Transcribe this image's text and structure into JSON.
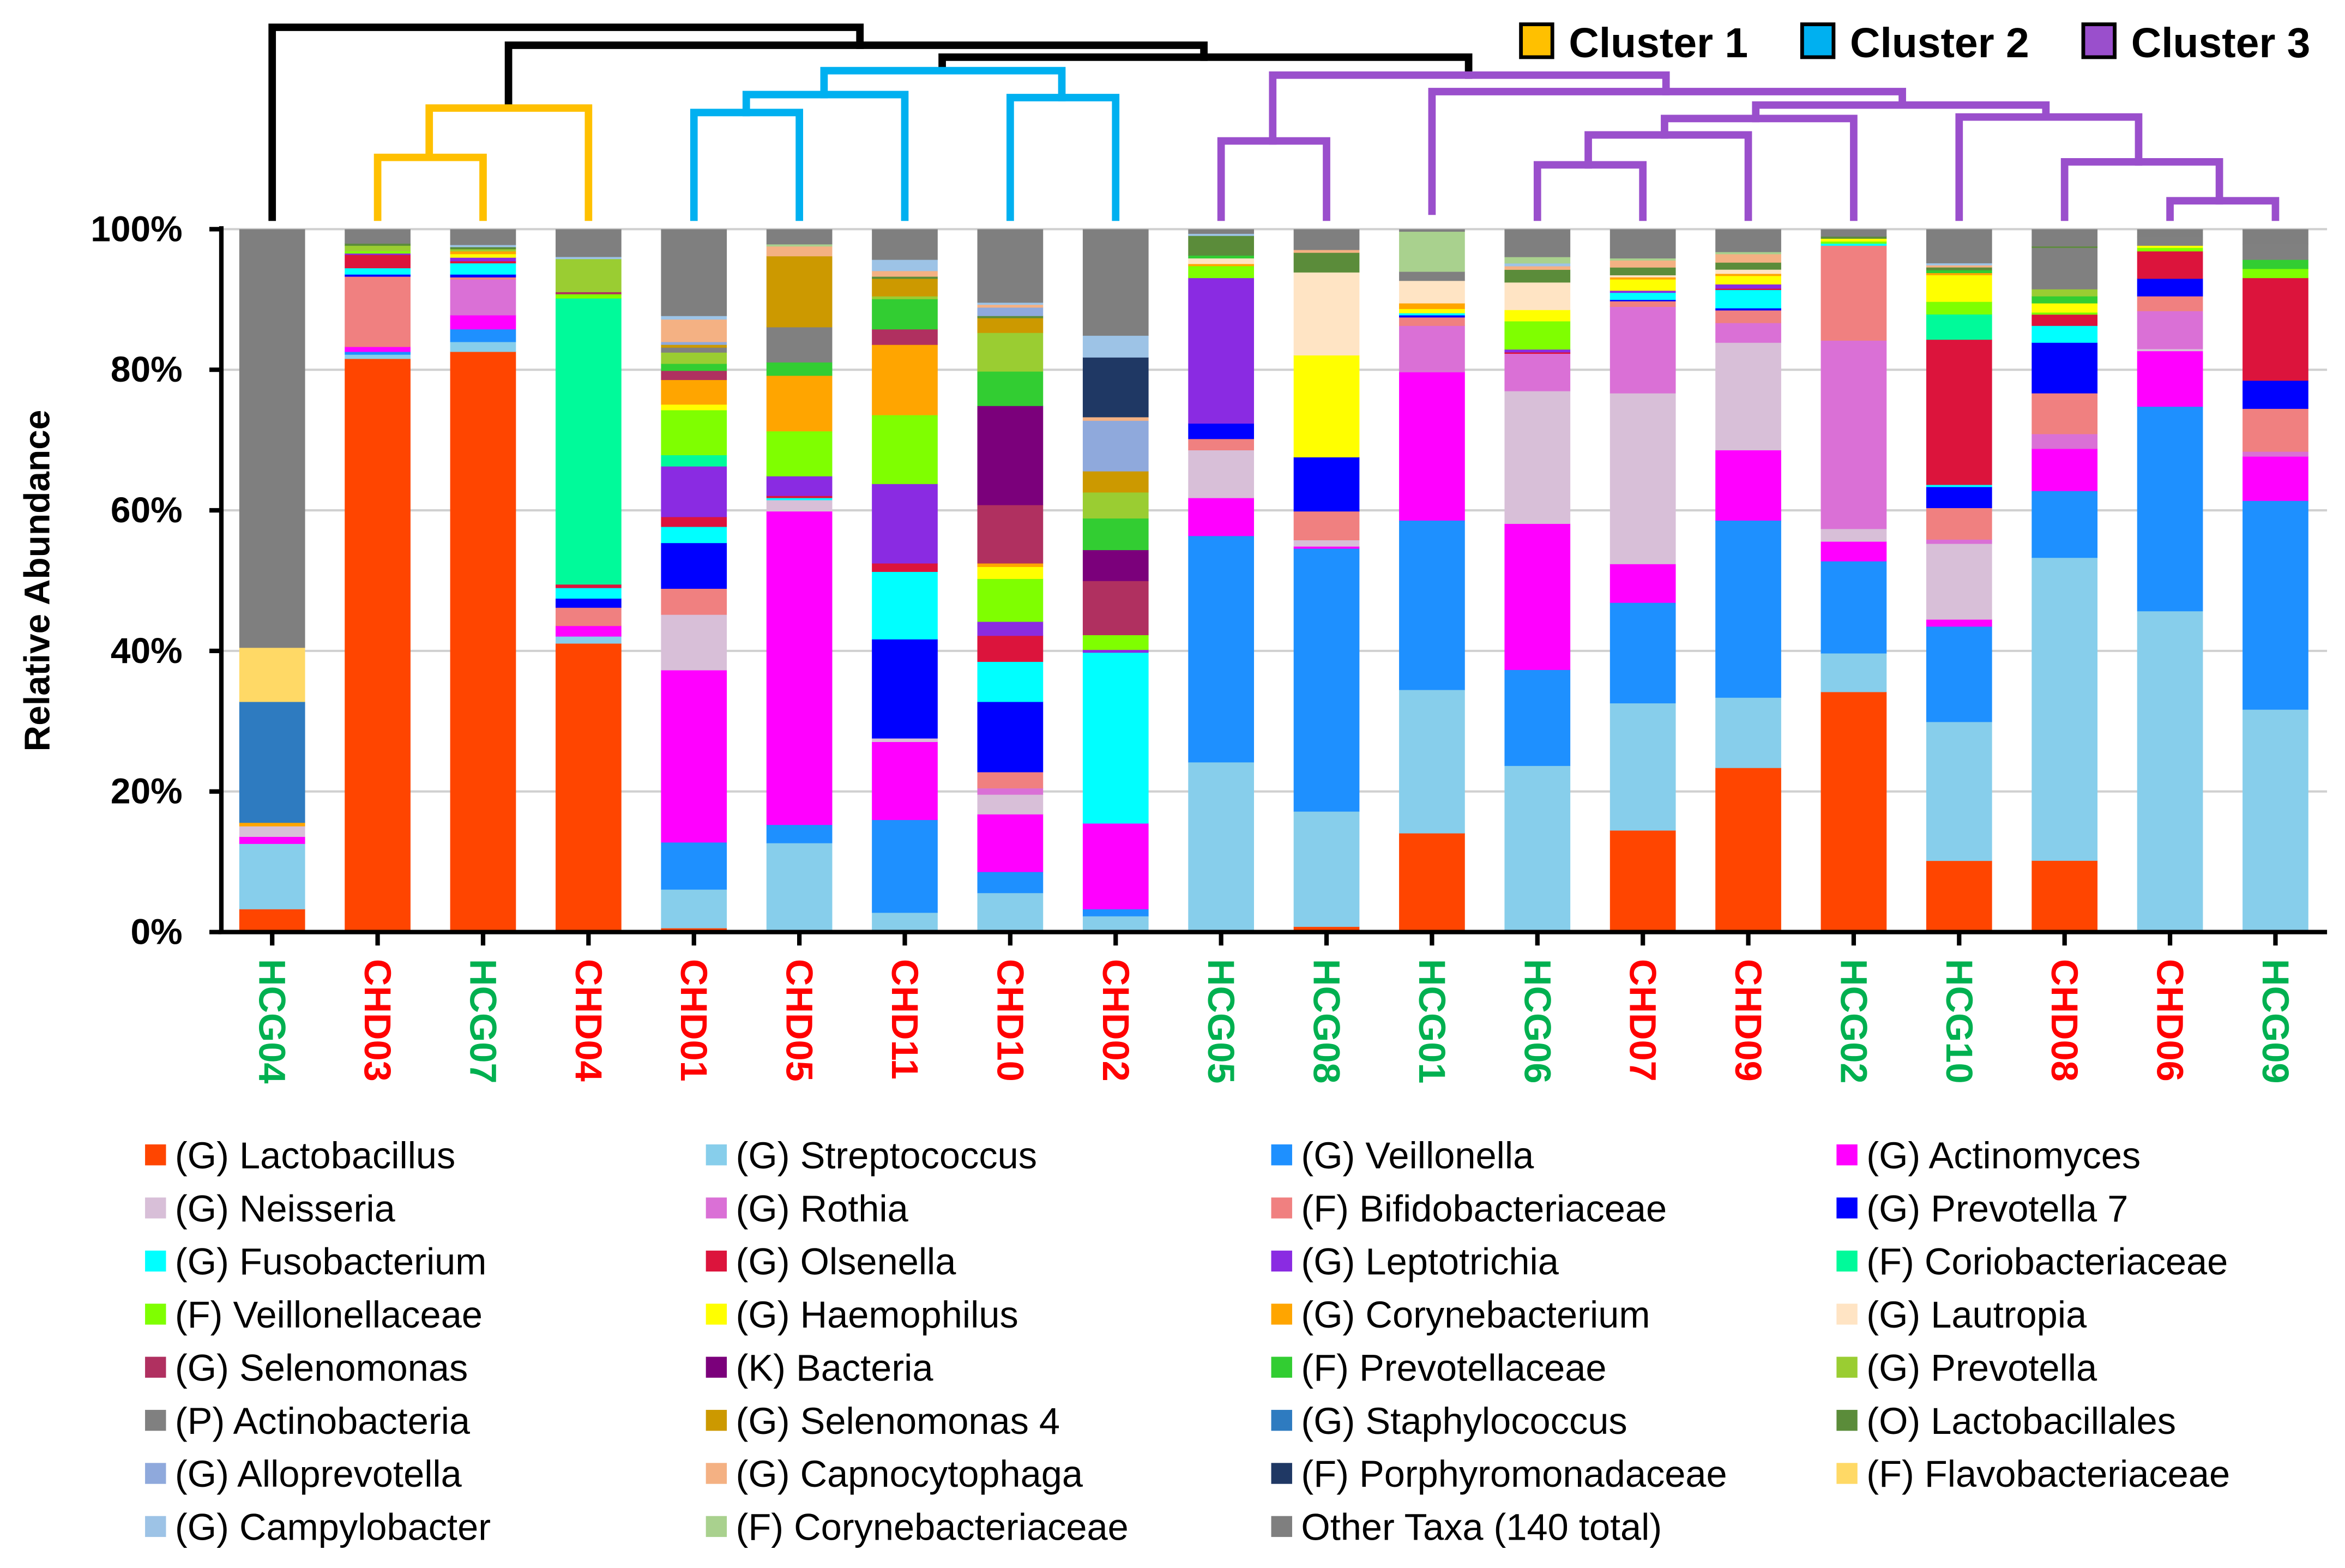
{
  "chart_data": {
    "type": "bar",
    "stacked": true,
    "ylabel": "Relative Abundance",
    "xlabel": "",
    "ylim": [
      0,
      100
    ],
    "yticks": [
      "0%",
      "20%",
      "40%",
      "60%",
      "80%",
      "100%"
    ],
    "grid": true,
    "legend_placement": "bottom",
    "categories": [
      "HCG04",
      "CHD03",
      "HCG07",
      "CHD04",
      "CHD01",
      "CHD05",
      "CHD11",
      "CHD10",
      "CHD02",
      "HCG05",
      "HCG08",
      "HCG01",
      "HCG06",
      "CHD07",
      "CHD09",
      "HCG02",
      "HCG10",
      "CHD08",
      "CHD06",
      "HCG09"
    ],
    "category_label_colors": [
      "#00B050",
      "#FF0000",
      "#00B050",
      "#FF0000",
      "#FF0000",
      "#FF0000",
      "#FF0000",
      "#FF0000",
      "#FF0000",
      "#00B050",
      "#00B050",
      "#00B050",
      "#00B050",
      "#FF0000",
      "#FF0000",
      "#00B050",
      "#00B050",
      "#FF0000",
      "#FF0000",
      "#00B050"
    ],
    "clusters": {
      "legend": [
        {
          "label": "Cluster 1",
          "color": "#FFC000"
        },
        {
          "label": "Cluster 2",
          "color": "#00B0F0"
        },
        {
          "label": "Cluster 3",
          "color": "#9A4FCC"
        }
      ],
      "membership": {
        "Cluster 1": [
          "CHD03",
          "HCG07",
          "CHD04"
        ],
        "Cluster 2": [
          "CHD01",
          "CHD05",
          "CHD11",
          "CHD10",
          "CHD02"
        ],
        "Cluster 3": [
          "HCG05",
          "HCG08",
          "HCG01",
          "HCG06",
          "CHD07",
          "CHD09",
          "HCG02",
          "HCG10",
          "CHD08",
          "CHD06",
          "HCG09"
        ]
      },
      "unclustered_color": "#000000"
    },
    "series": [
      {
        "name": "(G) Lactobacillus",
        "color": "#FF4500",
        "values": [
          3.3,
          81.6,
          82.6,
          41.1,
          0.6,
          0,
          0,
          0,
          0,
          0,
          0.8,
          14.1,
          0,
          14.5,
          23.4,
          34.2,
          10.2,
          10.2,
          0,
          0
        ]
      },
      {
        "name": "(G) Streptococcus",
        "color": "#87CEEB",
        "values": [
          9.3,
          0.6,
          1.4,
          1.0,
          5.5,
          12.7,
          2.8,
          5.6,
          2.3,
          24.2,
          16.4,
          20.4,
          23.6,
          18.1,
          10.0,
          5.5,
          19.8,
          43.1,
          45.7,
          31.7
        ]
      },
      {
        "name": "(G) Veillonella",
        "color": "#1E90FF",
        "values": [
          0,
          0.4,
          1.8,
          0,
          6.7,
          2.6,
          13.2,
          3.0,
          1.0,
          32.2,
          37.4,
          24.1,
          13.6,
          14.3,
          25.2,
          13.1,
          13.6,
          9.5,
          29.1,
          29.7
        ]
      },
      {
        "name": "(G) Actinomyces",
        "color": "#FF00FF",
        "values": [
          1.0,
          0.7,
          2.0,
          1.5,
          24.5,
          44.6,
          11.1,
          8.2,
          12.2,
          5.4,
          0.3,
          21.1,
          20.7,
          5.5,
          10.0,
          2.8,
          1.0,
          6.0,
          7.9,
          6.3
        ]
      },
      {
        "name": "(G) Neisseria",
        "color": "#D8BFD8",
        "values": [
          1.5,
          0,
          0,
          0,
          7.9,
          1.6,
          0.5,
          2.8,
          0,
          6.8,
          0.9,
          0,
          18.8,
          24.3,
          15.3,
          1.8,
          10.8,
          0,
          0.3,
          0
        ]
      },
      {
        "name": "(G) Rothia",
        "color": "#DA70D6",
        "values": [
          0,
          0,
          5.1,
          0,
          0,
          0,
          0,
          0.9,
          0,
          0,
          0,
          6.6,
          5.3,
          12.3,
          2.8,
          26.8,
          0.6,
          2.1,
          5.4,
          0.7
        ]
      },
      {
        "name": "(F) Bifidobacteriaceae",
        "color": "#F08080",
        "values": [
          0,
          10.0,
          0.3,
          2.6,
          3.7,
          0,
          0,
          2.3,
          0,
          1.6,
          4.1,
          1.2,
          0,
          0.8,
          1.8,
          13.5,
          4.5,
          5.8,
          2.1,
          6.1
        ]
      },
      {
        "name": "(G) Prevotella 7",
        "color": "#0000FF",
        "values": [
          0,
          0.3,
          0.4,
          1.3,
          6.5,
          0,
          14.1,
          10.0,
          0,
          2.2,
          7.7,
          0.3,
          0,
          0.2,
          0.3,
          0,
          3.0,
          7.2,
          2.5,
          4.0
        ]
      },
      {
        "name": "(G) Fusobacterium",
        "color": "#00FFFF",
        "values": [
          0,
          0.9,
          1.6,
          1.5,
          2.3,
          0.3,
          9.6,
          5.7,
          24.3,
          0,
          0,
          0.3,
          0,
          1.0,
          2.6,
          0.3,
          0.3,
          2.4,
          0,
          0
        ]
      },
      {
        "name": "(G) Olsenella",
        "color": "#DC143C",
        "values": [
          0,
          1.9,
          0.3,
          0.5,
          1.4,
          0.3,
          1.2,
          3.7,
          0,
          0,
          0,
          0,
          0.2,
          0,
          0.2,
          0,
          20.7,
          1.6,
          3.9,
          14.6
        ]
      },
      {
        "name": "(G) Leptotrichia",
        "color": "#8A2BE2",
        "values": [
          0,
          0.2,
          0.5,
          0,
          7.2,
          2.8,
          11.3,
          2.0,
          0.4,
          20.7,
          0,
          0,
          0.4,
          0.3,
          0.6,
          0,
          0,
          0,
          0,
          0
        ]
      },
      {
        "name": "(F) Coriobacteriaceae",
        "color": "#00FA9A",
        "values": [
          0,
          0,
          0,
          40.7,
          1.6,
          0,
          0,
          0,
          0,
          0,
          0,
          0,
          0,
          0,
          0,
          0,
          3.6,
          0,
          0,
          0
        ]
      },
      {
        "name": "(F) Veillonellaceae",
        "color": "#7FFF00",
        "values": [
          0,
          0.3,
          0,
          0.6,
          6.4,
          6.4,
          9.8,
          6.1,
          2.1,
          1.7,
          0,
          0,
          4.0,
          0,
          0,
          0.3,
          1.8,
          0.3,
          0.5,
          1.3
        ]
      },
      {
        "name": "(G) Haemophilus",
        "color": "#FFFF00",
        "values": [
          0,
          0,
          0.5,
          0,
          0.8,
          0,
          0,
          1.7,
          0,
          0,
          14.5,
          0.6,
          1.6,
          1.6,
          1.2,
          0.4,
          3.8,
          1.3,
          0.3,
          0
        ]
      },
      {
        "name": "(G) Corynebacterium",
        "color": "#FFA500",
        "values": [
          0.5,
          0,
          0.4,
          0,
          3.5,
          7.9,
          10.0,
          0.5,
          0,
          0.3,
          0,
          0.8,
          0,
          0.3,
          0.3,
          0,
          0.3,
          0,
          0,
          0
        ]
      },
      {
        "name": "(G) Lautropia",
        "color": "#FFE4C4",
        "values": [
          0,
          0,
          0,
          0,
          0,
          0,
          0,
          0,
          0,
          0.8,
          11.8,
          3.2,
          3.9,
          0.3,
          0.6,
          0,
          0,
          0,
          0,
          0
        ]
      },
      {
        "name": "(G) Selenomonas",
        "color": "#B03060",
        "values": [
          0,
          0,
          0,
          0.3,
          1.3,
          0,
          2.2,
          8.3,
          7.7,
          0,
          0,
          0,
          0,
          0,
          0,
          0,
          0,
          0,
          0,
          0
        ]
      },
      {
        "name": "(K) Bacteria",
        "color": "#7B007B",
        "values": [
          0,
          0,
          0,
          0,
          0,
          0,
          0,
          14.1,
          4.4,
          0,
          0,
          0,
          0,
          0,
          0,
          0,
          0,
          0,
          0,
          0
        ]
      },
      {
        "name": "(F) Prevotellaceae",
        "color": "#32CD32",
        "values": [
          0,
          0,
          0,
          0,
          1.0,
          1.9,
          4.3,
          4.9,
          4.5,
          0.4,
          0,
          0,
          0,
          0,
          0,
          0,
          0.4,
          1.0,
          0,
          1.3
        ]
      },
      {
        "name": "(G) Prevotella",
        "color": "#9ACD32",
        "values": [
          0,
          0.8,
          0.3,
          4.7,
          1.6,
          0,
          0.4,
          5.5,
          3.7,
          0,
          0,
          0,
          0,
          0,
          0,
          0,
          0,
          1.0,
          0,
          0
        ]
      },
      {
        "name": "(P) Actinobacteria",
        "color": "#808080",
        "values": [
          0,
          0,
          0,
          0,
          0.7,
          5.0,
          0,
          0,
          0,
          0,
          0,
          1.3,
          0,
          0,
          0,
          0,
          0,
          5.9,
          1.2,
          2.2
        ]
      },
      {
        "name": "(G) Selenomonas 4",
        "color": "#CC9900",
        "values": [
          0,
          0,
          0,
          0,
          0.4,
          10.1,
          2.5,
          2.1,
          3.0,
          0,
          0,
          0,
          0,
          0,
          0,
          0,
          0,
          0,
          0,
          0
        ]
      },
      {
        "name": "(G) Staphylococcus",
        "color": "#2E7BC0",
        "values": [
          17.2,
          0,
          0,
          0,
          0,
          0,
          0,
          0,
          0,
          0,
          0,
          0,
          0,
          0,
          0,
          0,
          0,
          0,
          0,
          0
        ]
      },
      {
        "name": "(O) Lactobacillales",
        "color": "#5B8C3A",
        "values": [
          0,
          0.3,
          0.3,
          0,
          0,
          0,
          0.3,
          0.3,
          0,
          2.8,
          2.8,
          0,
          1.8,
          1.1,
          1.0,
          0.3,
          0.4,
          0.2,
          0,
          0
        ]
      },
      {
        "name": "(G) Alloprevotella",
        "color": "#8FA9DC",
        "values": [
          0,
          0,
          0,
          0,
          0.4,
          0,
          0,
          1.2,
          7.2,
          0,
          0,
          0,
          0,
          0,
          0,
          0,
          0,
          0,
          0,
          0
        ]
      },
      {
        "name": "(G) Capnocytophaga",
        "color": "#F4B183",
        "values": [
          0,
          0,
          0,
          0,
          3.2,
          1.4,
          0.8,
          0.4,
          0.5,
          0,
          0.4,
          0,
          0.5,
          1.0,
          1.2,
          0,
          0.3,
          0,
          0,
          0
        ]
      },
      {
        "name": "(F) Porphyromonadaceae",
        "color": "#1F3864",
        "values": [
          0,
          0,
          0,
          0,
          0,
          0,
          0,
          0,
          8.5,
          0,
          0,
          0,
          0,
          0,
          0,
          0,
          0,
          0,
          0,
          0
        ]
      },
      {
        "name": "(F) Flavobacteriaceae",
        "color": "#FFD966",
        "values": [
          7.7,
          0,
          0,
          0,
          0,
          0,
          0,
          0,
          0,
          0,
          0,
          0,
          0,
          0,
          0,
          0,
          0,
          0,
          0,
          0
        ]
      },
      {
        "name": "(G) Campylobacter",
        "color": "#9DC3E6",
        "values": [
          0,
          0,
          0.3,
          0.3,
          0.5,
          0,
          1.6,
          0.3,
          3.1,
          0.3,
          0,
          0,
          0.4,
          0,
          0,
          0,
          0.3,
          0,
          0,
          0
        ]
      },
      {
        "name": "(F) Corynebacteriaceae",
        "color": "#A9D18E",
        "values": [
          0,
          0,
          0,
          0,
          0,
          0.3,
          0,
          0,
          0,
          0,
          0,
          5.7,
          0.9,
          0.3,
          0.3,
          0,
          0,
          0,
          0,
          0
        ]
      },
      {
        "name": "Other Taxa (140 total)",
        "color": "#7F7F7F",
        "values": [
          59.5,
          2.0,
          2.2,
          3.9,
          12.3,
          2.1,
          4.3,
          10.4,
          15.1,
          0.6,
          2.9,
          0.3,
          3.9,
          4.1,
          3.2,
          1.0,
          4.8,
          2.4,
          1.1,
          2.1
        ]
      }
    ]
  }
}
